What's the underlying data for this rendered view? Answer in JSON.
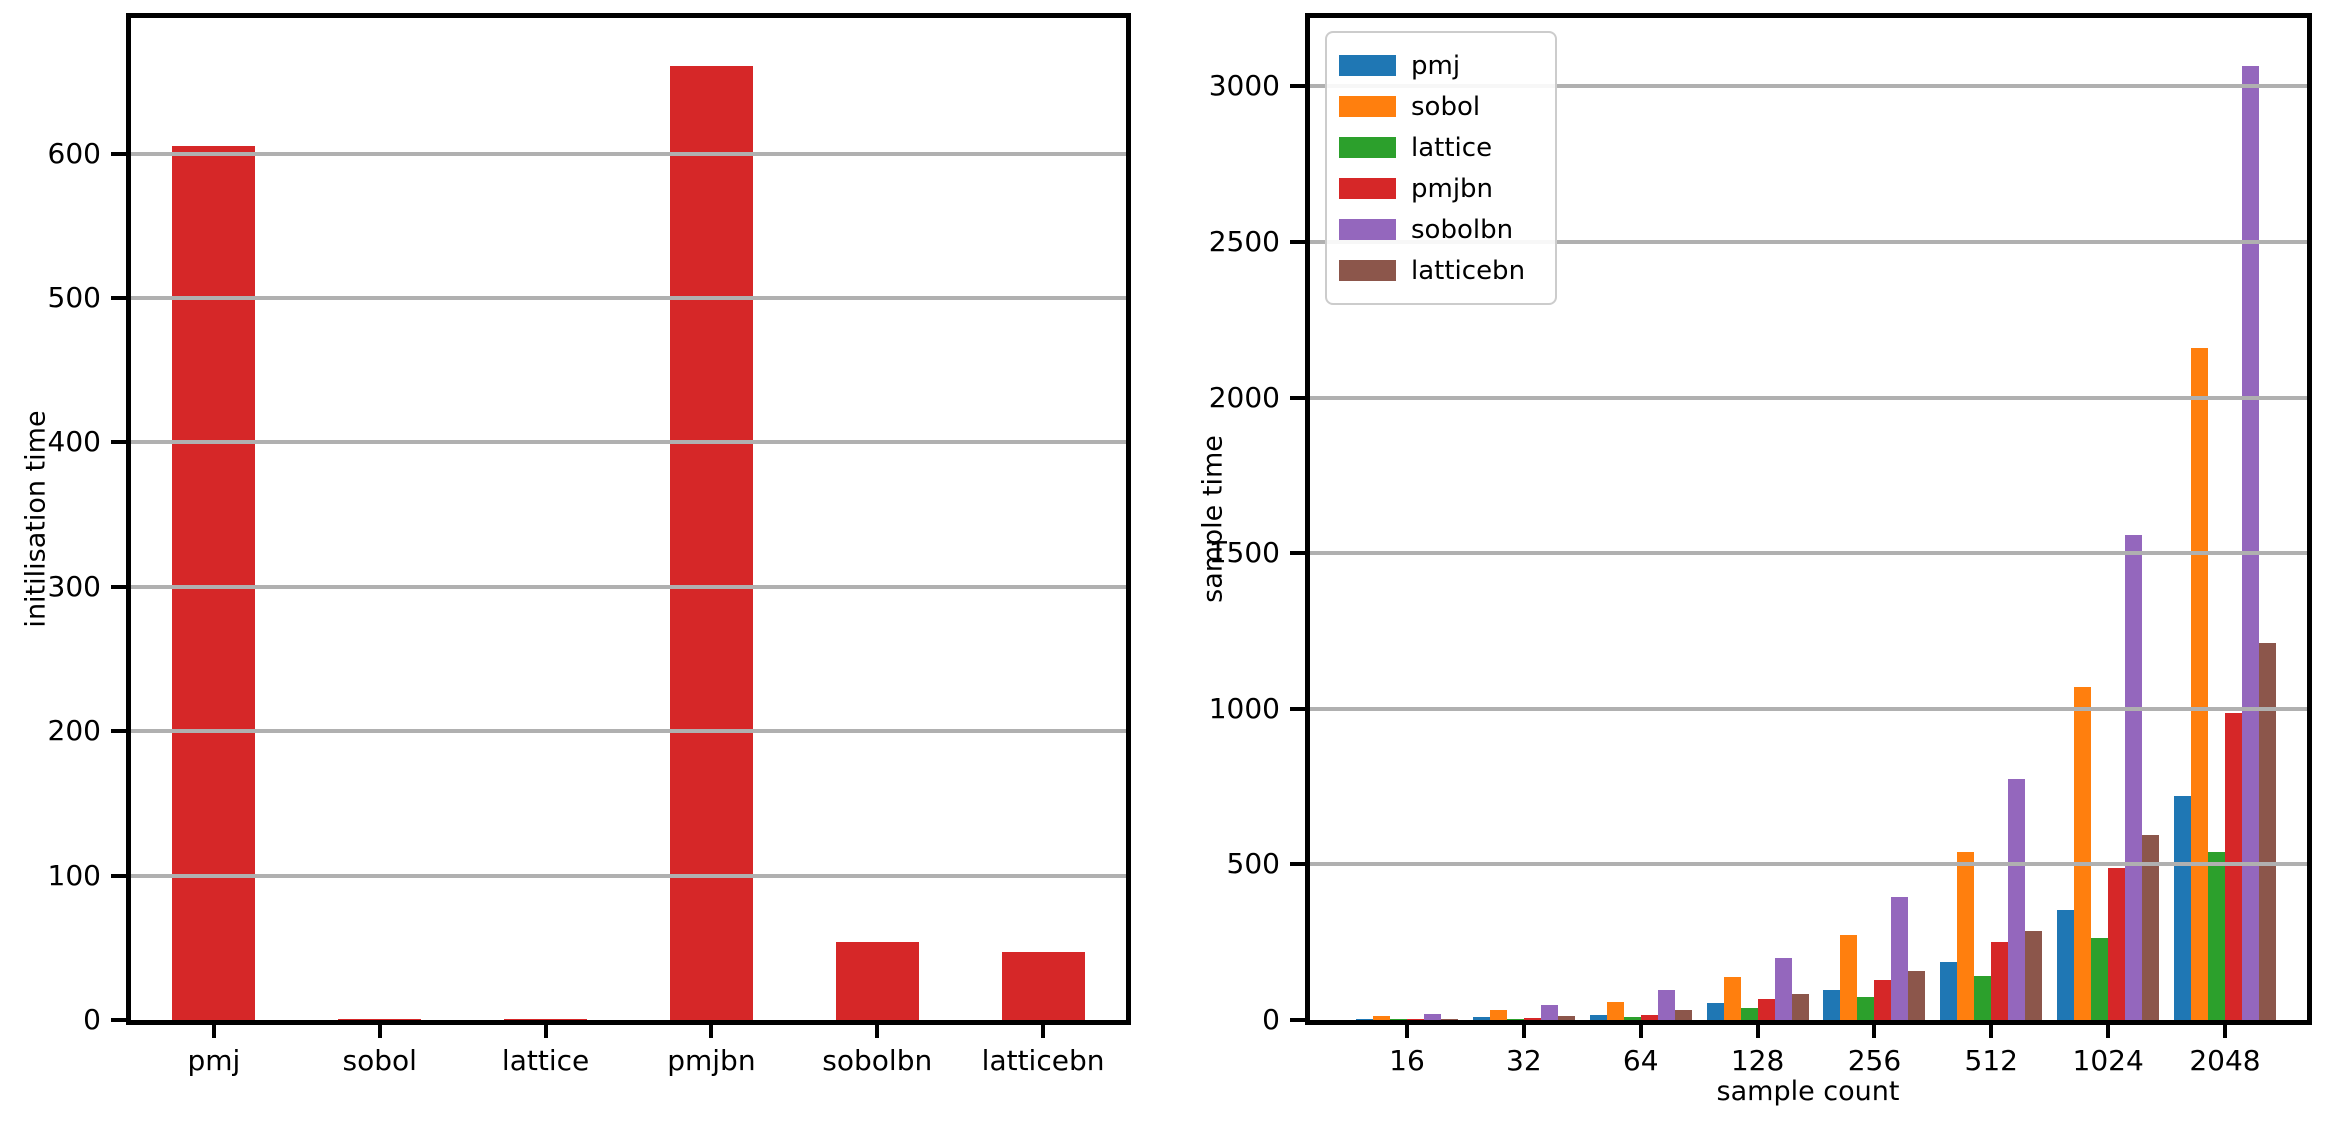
{
  "chart_data": [
    {
      "type": "bar",
      "title": "",
      "ylabel": "initilisation time",
      "xlabel": "",
      "categories": [
        "pmj",
        "sobol",
        "lattice",
        "pmjbn",
        "sobolbn",
        "latticebn"
      ],
      "values": [
        605,
        1,
        1,
        661,
        54,
        47
      ],
      "bar_color": "#d62728",
      "ylim": [
        0,
        694
      ],
      "yticks": [
        0,
        100,
        200,
        300,
        400,
        500,
        600
      ],
      "grid": "horizontal",
      "legend": null
    },
    {
      "type": "bar",
      "title": "",
      "ylabel": "sample time",
      "xlabel": "sample count",
      "categories": [
        "16",
        "32",
        "64",
        "128",
        "256",
        "512",
        "1024",
        "2048"
      ],
      "series": [
        {
          "name": "pmj",
          "color": "#1f77b4",
          "values": [
            4,
            10,
            16,
            54,
            96,
            186,
            355,
            720
          ]
        },
        {
          "name": "sobol",
          "color": "#ff7f0e",
          "values": [
            14,
            31,
            57,
            138,
            272,
            540,
            1070,
            2160
          ]
        },
        {
          "name": "lattice",
          "color": "#2ca02c",
          "values": [
            2,
            3,
            9,
            38,
            73,
            143,
            265,
            540
          ]
        },
        {
          "name": "pmjbn",
          "color": "#d62728",
          "values": [
            4,
            7,
            15,
            68,
            128,
            250,
            490,
            985
          ]
        },
        {
          "name": "sobolbn",
          "color": "#9467bd",
          "values": [
            20,
            48,
            95,
            198,
            395,
            775,
            1560,
            3065
          ]
        },
        {
          "name": "latticebn",
          "color": "#8c564b",
          "values": [
            4,
            12,
            33,
            83,
            158,
            285,
            595,
            1210
          ]
        }
      ],
      "ylim": [
        0,
        3220
      ],
      "yticks": [
        0,
        500,
        1000,
        1500,
        2000,
        2500,
        3000
      ],
      "grid": "horizontal",
      "legend": {
        "position": "upper left"
      }
    }
  ],
  "colors": {
    "grid": "#b0b0b0",
    "axis": "#000000",
    "background": "#ffffff"
  }
}
